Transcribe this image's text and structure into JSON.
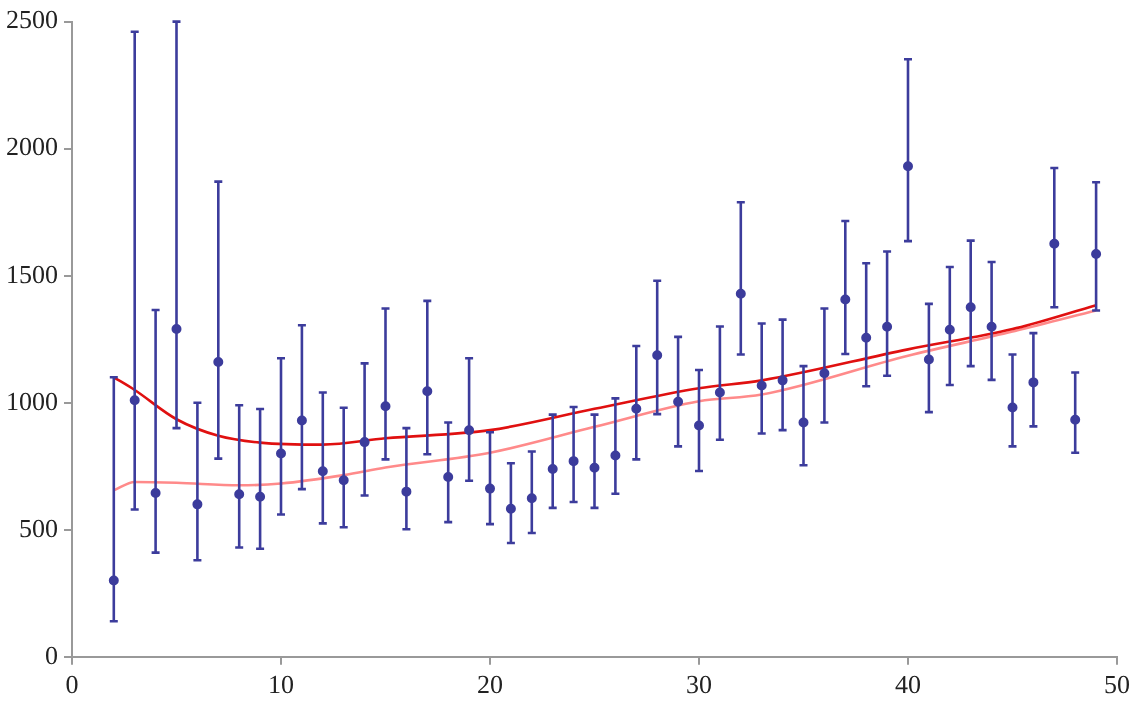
{
  "chart_data": {
    "type": "scatter",
    "xlim": [
      0,
      50
    ],
    "ylim": [
      0,
      2500
    ],
    "xticks": [
      0,
      10,
      20,
      30,
      40,
      50
    ],
    "yticks": [
      0,
      500,
      1000,
      1500,
      2000,
      2500
    ],
    "grid": false,
    "legend": false,
    "series": [
      {
        "marker": "circle",
        "color": "#3c3c9c",
        "x": [
          2,
          3,
          4,
          5,
          6,
          7,
          8,
          9,
          10,
          11,
          12,
          13,
          14,
          15,
          16,
          17,
          18,
          19,
          20,
          21,
          22,
          23,
          24,
          25,
          26,
          27,
          28,
          29,
          30,
          31,
          32,
          33,
          34,
          35,
          36,
          37,
          38,
          39,
          40,
          41,
          42,
          43,
          44,
          45,
          46,
          47,
          48,
          49
        ],
        "values": [
          300,
          1010,
          645,
          1290,
          600,
          1160,
          640,
          630,
          800,
          930,
          730,
          695,
          845,
          986,
          650,
          1045,
          708,
          892,
          662,
          583,
          624,
          739,
          770,
          744,
          792,
          976,
          1187,
          1004,
          910,
          1040,
          1429,
          1068,
          1088,
          922,
          1116,
          1406,
          1256,
          1299,
          1931,
          1170,
          1287,
          1376,
          1299,
          981,
          1080,
          1626,
          933,
          1585
        ],
        "errors": [
          [
            140,
            1100
          ],
          [
            580,
            2460
          ],
          [
            410,
            1365
          ],
          [
            900,
            2500
          ],
          [
            380,
            1000
          ],
          [
            780,
            1870
          ],
          [
            430,
            990
          ],
          [
            425,
            975
          ],
          [
            560,
            1175
          ],
          [
            660,
            1305
          ],
          [
            525,
            1040
          ],
          [
            510,
            980
          ],
          [
            635,
            1155
          ],
          [
            777,
            1371
          ],
          [
            502,
            900
          ],
          [
            797,
            1401
          ],
          [
            530,
            922
          ],
          [
            693,
            1175
          ],
          [
            522,
            884
          ],
          [
            448,
            762
          ],
          [
            487,
            808
          ],
          [
            586,
            953
          ],
          [
            609,
            983
          ],
          [
            586,
            953
          ],
          [
            642,
            1017
          ],
          [
            777,
            1223
          ],
          [
            955,
            1480
          ],
          [
            828,
            1259
          ],
          [
            731,
            1129
          ],
          [
            854,
            1300
          ],
          [
            1190,
            1789
          ],
          [
            879,
            1312
          ],
          [
            892,
            1327
          ],
          [
            754,
            1144
          ],
          [
            922,
            1371
          ],
          [
            1192,
            1715
          ],
          [
            1065,
            1549
          ],
          [
            1106,
            1595
          ],
          [
            1636,
            2352
          ],
          [
            963,
            1389
          ],
          [
            1070,
            1534
          ],
          [
            1144,
            1638
          ],
          [
            1090,
            1554
          ],
          [
            828,
            1190
          ],
          [
            907,
            1274
          ],
          [
            1376,
            1924
          ],
          [
            803,
            1119
          ],
          [
            1363,
            1868
          ]
        ]
      },
      {
        "type": "line",
        "marker": "none",
        "color": "#e01010",
        "x": [
          2,
          3,
          5,
          7,
          9,
          12,
          15,
          20,
          25,
          30,
          33,
          40,
          45,
          49
        ],
        "values": [
          1100,
          1050,
          935,
          870,
          843,
          835,
          860,
          892,
          976,
          1057,
          1088,
          1210,
          1290,
          1384
        ]
      },
      {
        "type": "line",
        "marker": "none",
        "color": "#ff8a8a",
        "x": [
          2,
          3,
          5,
          8,
          10,
          13,
          15,
          20,
          25,
          30,
          33,
          40,
          45,
          49
        ],
        "values": [
          655,
          688,
          685,
          675,
          682,
          715,
          745,
          803,
          905,
          1006,
          1032,
          1185,
          1280,
          1363
        ]
      }
    ]
  }
}
